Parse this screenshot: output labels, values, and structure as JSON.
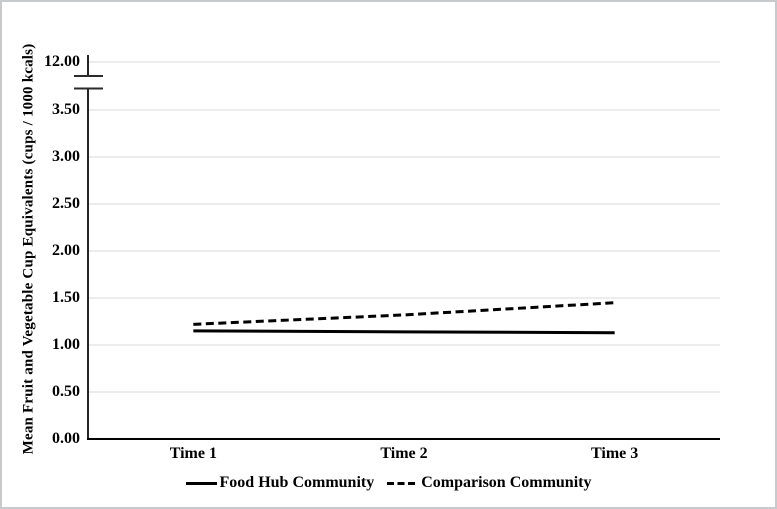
{
  "figure": {
    "background": "#ffffff",
    "border_color": "#c7cbce"
  },
  "chart_data": {
    "type": "line",
    "title": "",
    "xlabel": "",
    "ylabel": "Mean Fruit and Vegetable Cup Equivalents (cups / 1000 kcals)",
    "categories": [
      "Time 1",
      "Time 2",
      "Time 3"
    ],
    "series": [
      {
        "name": "Food Hub Community",
        "line_style": "solid",
        "color": "#000000",
        "values": [
          1.15,
          1.14,
          1.13
        ]
      },
      {
        "name": "Comparison Community",
        "line_style": "dashed",
        "color": "#000000",
        "values": [
          1.22,
          1.32,
          1.45
        ]
      }
    ],
    "ylim": [
      0,
      3.5
    ],
    "y_ticks": [
      "0.00",
      "0.50",
      "1.00",
      "1.50",
      "2.00",
      "2.50",
      "3.00",
      "3.50"
    ],
    "y_axis_break": {
      "tick_label": "12.00"
    },
    "grid": true,
    "gridline_color": "#d9d9d9",
    "axis_color": "#000000",
    "legend_position": "bottom"
  }
}
